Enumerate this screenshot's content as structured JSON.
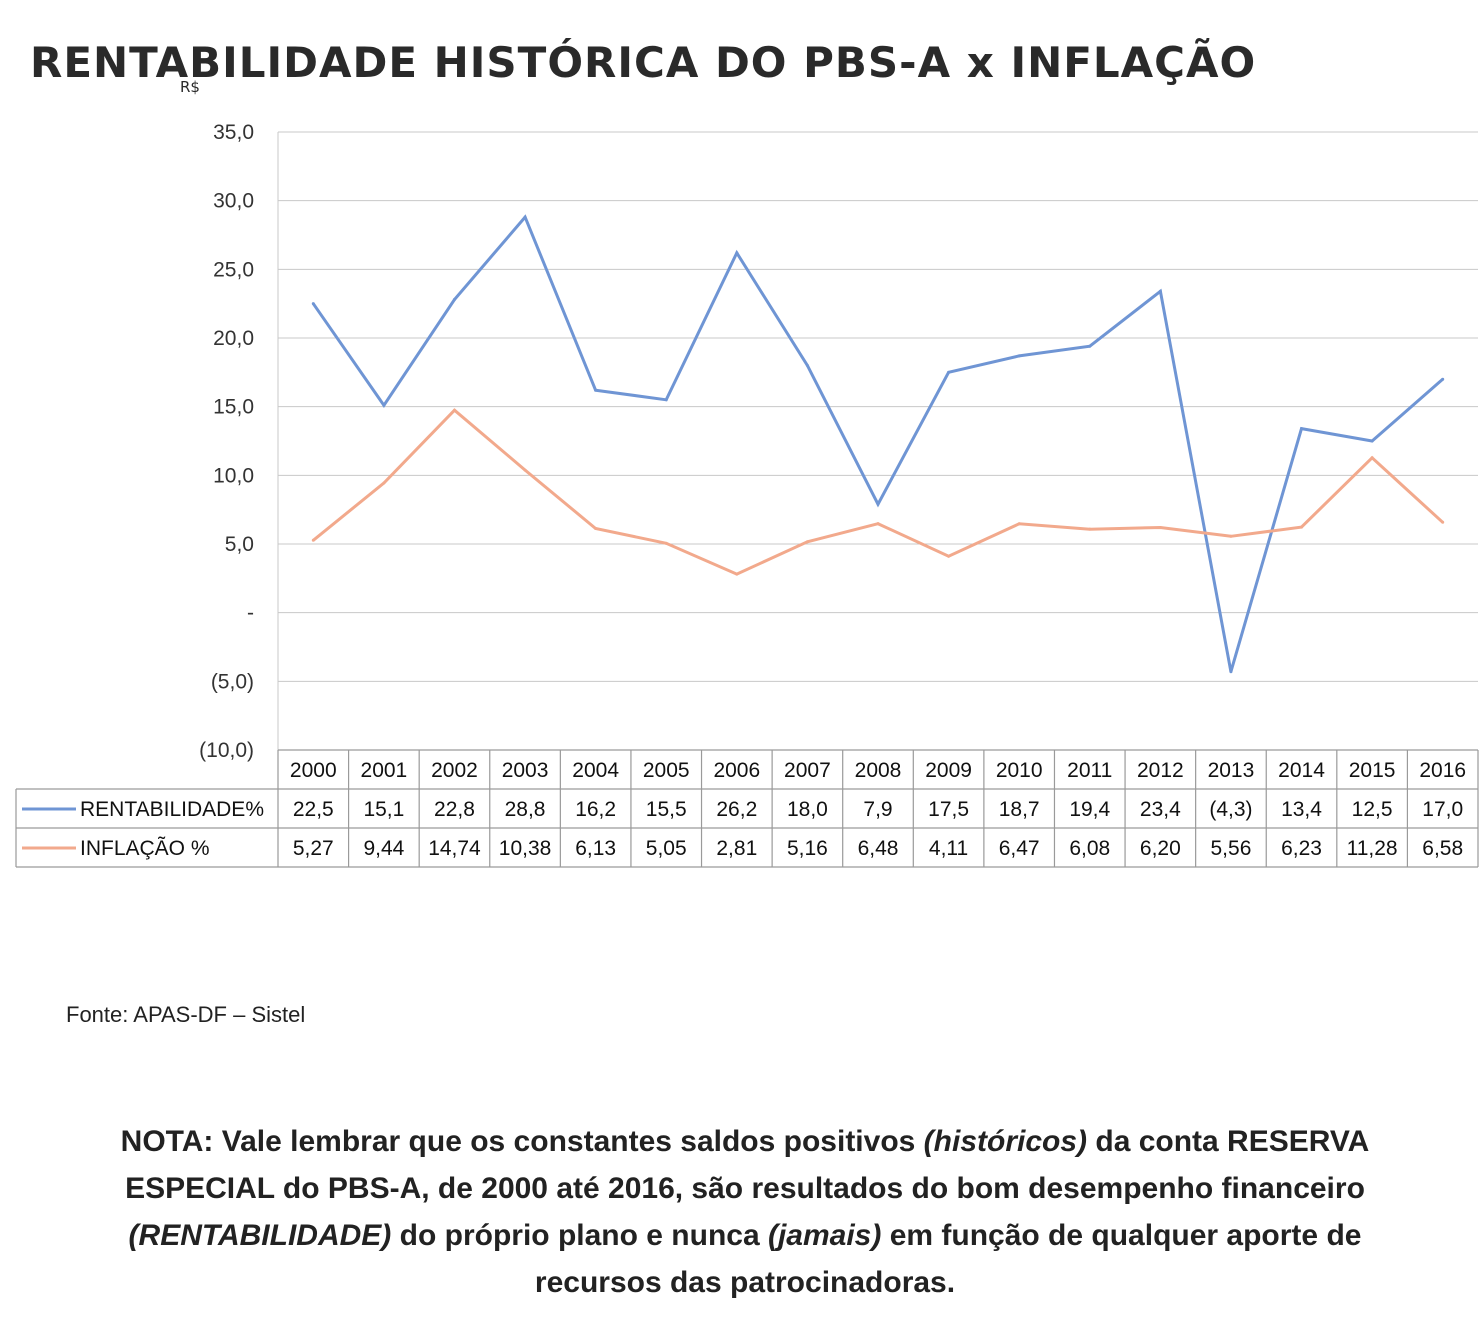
{
  "title": "RENTABILIDADE HISTÓRICA DO PBS-A  x  INFLAÇÃO",
  "title_mark": "R$",
  "chart_data": {
    "type": "line",
    "title": "RENTABILIDADE HISTÓRICA DO PBS-A  x  INFLAÇÃO",
    "categories": [
      "2000",
      "2001",
      "2002",
      "2003",
      "2004",
      "2005",
      "2006",
      "2007",
      "2008",
      "2009",
      "2010",
      "2011",
      "2012",
      "2013",
      "2014",
      "2015",
      "2016"
    ],
    "ylim": [
      -10,
      35
    ],
    "yticks": [
      {
        "value": 35,
        "label": "35,0"
      },
      {
        "value": 30,
        "label": "30,0"
      },
      {
        "value": 25,
        "label": "25,0"
      },
      {
        "value": 20,
        "label": "20,0"
      },
      {
        "value": 15,
        "label": "15,0"
      },
      {
        "value": 10,
        "label": "10,0"
      },
      {
        "value": 5,
        "label": "5,0"
      },
      {
        "value": 0,
        "label": "-"
      },
      {
        "value": -5,
        "label": "(5,0)"
      },
      {
        "value": -10,
        "label": "(10,0)"
      }
    ],
    "grid": true,
    "legend": "data-table",
    "series": [
      {
        "name": "RENTABILIDADE%",
        "color": "#6f95d4",
        "values": [
          22.5,
          15.1,
          22.8,
          28.8,
          16.2,
          15.5,
          26.2,
          18.0,
          7.9,
          17.5,
          18.7,
          19.4,
          23.4,
          -4.3,
          13.4,
          12.5,
          17.0
        ],
        "labels": [
          "22,5",
          "15,1",
          "22,8",
          "28,8",
          "16,2",
          "15,5",
          "26,2",
          "18,0",
          "7,9",
          "17,5",
          "18,7",
          "19,4",
          "23,4",
          "(4,3)",
          "13,4",
          "12,5",
          "17,0"
        ]
      },
      {
        "name": "INFLAÇÃO %",
        "color": "#f2a98c",
        "values": [
          5.27,
          9.44,
          14.74,
          10.38,
          6.13,
          5.05,
          2.81,
          5.16,
          6.48,
          4.11,
          6.47,
          6.08,
          6.2,
          5.56,
          6.23,
          11.28,
          6.58
        ],
        "labels": [
          "5,27",
          "9,44",
          "14,74",
          "10,38",
          "6,13",
          "5,05",
          "2,81",
          "5,16",
          "6,48",
          "4,11",
          "6,47",
          "6,08",
          "6,20",
          "5,56",
          "6,23",
          "11,28",
          "6,58"
        ]
      }
    ]
  },
  "source": "Fonte:  APAS-DF – Sistel",
  "note": {
    "p1": "NOTA:  Vale lembrar que os constantes saldos positivos ",
    "e1": "(históricos)",
    "p2": " da conta RESERVA ESPECIAL do PBS-A, de 2000 até 2016, são resultados do bom desempenho financeiro ",
    "e2": "(RENTABILIDADE)",
    "p3": " do próprio plano e nunca ",
    "e3": "(jamais)",
    "p4": " em função de qualquer aporte de recursos das patrocinadoras."
  }
}
